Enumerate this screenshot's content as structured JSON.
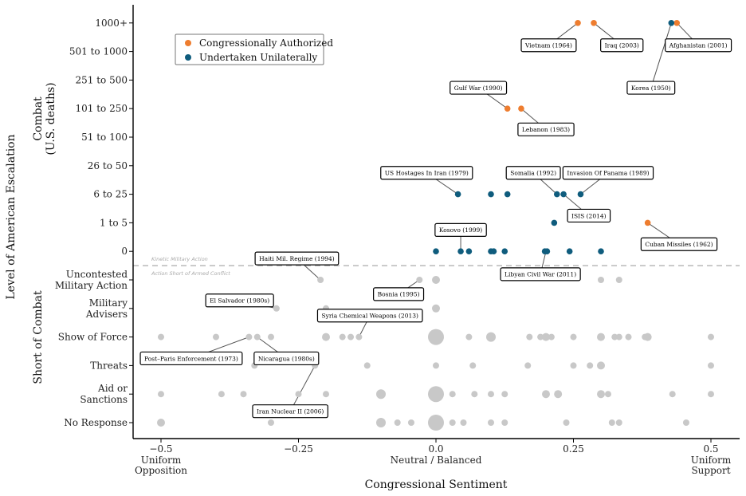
{
  "chart_data": {
    "type": "scatter",
    "xlabel": "Congressional Sentiment",
    "ylabel": "Level of American Escalation",
    "xlim": [
      -0.55,
      0.55
    ],
    "x_ticks": [
      {
        "value": -0.5,
        "label": "−0.5",
        "sub": [
          "Uniform",
          "Opposition"
        ]
      },
      {
        "value": -0.25,
        "label": "−0.25",
        "sub": []
      },
      {
        "value": 0,
        "label": "0.0",
        "sub": [
          "Neutral / Balanced"
        ]
      },
      {
        "value": 0.25,
        "label": "0.25",
        "sub": []
      },
      {
        "value": 0.5,
        "label": "0.5",
        "sub": [
          "Uniform",
          "Support"
        ]
      }
    ],
    "y_levels": [
      [
        "No Response"
      ],
      [
        "Aid or",
        "Sanctions"
      ],
      [
        "Threats"
      ],
      [
        "Show of Force"
      ],
      [
        "Military",
        "Advisers"
      ],
      [
        "Uncontested",
        "Military Action"
      ],
      [
        "0"
      ],
      [
        "1 to 5"
      ],
      [
        "6 to 25"
      ],
      [
        "26 to 50"
      ],
      [
        "51 to 100"
      ],
      [
        "101 to 250"
      ],
      [
        "251 to 500"
      ],
      [
        "501 to 1000"
      ],
      [
        "1000+"
      ]
    ],
    "group_labels": {
      "combat": [
        "Combat",
        "(U.S. deaths)"
      ],
      "short": "Short of Combat"
    },
    "divider_labels": {
      "above": "Kinetic Military Action",
      "below": "Action Short of Armed Conflict"
    },
    "legend": {
      "position": "top-left",
      "entries": [
        {
          "name": "Congressionally Authorized",
          "color": "#ee7d2f"
        },
        {
          "name": "Undertaken Unilaterally",
          "color": "#0f5c7d"
        }
      ]
    },
    "colors": {
      "authorized": "#ee7d2f",
      "unilateral": "#0f5c7d",
      "short": "#c8c8c8"
    },
    "series": [
      {
        "name": "Congressionally Authorized",
        "color": "#ee7d2f",
        "points": [
          {
            "x": 0.258,
            "y": 14
          },
          {
            "x": 0.287,
            "y": 14
          },
          {
            "x": 0.438,
            "y": 14
          },
          {
            "x": 0.13,
            "y": 11
          },
          {
            "x": 0.155,
            "y": 11
          },
          {
            "x": 0.385,
            "y": 7
          }
        ]
      },
      {
        "name": "Undertaken Unilaterally",
        "color": "#0f5c7d",
        "points": [
          {
            "x": 0.428,
            "y": 14
          },
          {
            "x": 0.04,
            "y": 8
          },
          {
            "x": 0.1,
            "y": 8
          },
          {
            "x": 0.13,
            "y": 8
          },
          {
            "x": 0.22,
            "y": 8
          },
          {
            "x": 0.232,
            "y": 8
          },
          {
            "x": 0.263,
            "y": 8
          },
          {
            "x": 0.215,
            "y": 7
          },
          {
            "x": 0.0,
            "y": 6
          },
          {
            "x": 0.045,
            "y": 6
          },
          {
            "x": 0.06,
            "y": 6
          },
          {
            "x": 0.1,
            "y": 6
          },
          {
            "x": 0.105,
            "y": 6
          },
          {
            "x": 0.125,
            "y": 6
          },
          {
            "x": 0.198,
            "y": 6
          },
          {
            "x": 0.202,
            "y": 6
          },
          {
            "x": 0.243,
            "y": 6
          },
          {
            "x": 0.3,
            "y": 6
          }
        ]
      },
      {
        "name": "",
        "color": "#c8c8c8",
        "points": [
          {
            "x": -0.21,
            "y": 5,
            "r": 4
          },
          {
            "x": -0.03,
            "y": 5,
            "r": 4
          },
          {
            "x": 0.0,
            "y": 5,
            "r": 5
          },
          {
            "x": 0.3,
            "y": 5,
            "r": 4
          },
          {
            "x": 0.333,
            "y": 5,
            "r": 4
          },
          {
            "x": -0.29,
            "y": 4,
            "r": 4
          },
          {
            "x": -0.2,
            "y": 4,
            "r": 4
          },
          {
            "x": 0.0,
            "y": 4,
            "r": 5
          },
          {
            "x": -0.5,
            "y": 3,
            "r": 4
          },
          {
            "x": -0.4,
            "y": 3,
            "r": 4
          },
          {
            "x": -0.34,
            "y": 3,
            "r": 4
          },
          {
            "x": -0.325,
            "y": 3,
            "r": 4
          },
          {
            "x": -0.3,
            "y": 3,
            "r": 4
          },
          {
            "x": -0.2,
            "y": 3,
            "r": 5
          },
          {
            "x": -0.17,
            "y": 3,
            "r": 4
          },
          {
            "x": -0.155,
            "y": 3,
            "r": 4
          },
          {
            "x": -0.14,
            "y": 3,
            "r": 4
          },
          {
            "x": 0.0,
            "y": 3,
            "r": 10
          },
          {
            "x": 0.06,
            "y": 3,
            "r": 4
          },
          {
            "x": 0.1,
            "y": 3,
            "r": 6
          },
          {
            "x": 0.17,
            "y": 3,
            "r": 4
          },
          {
            "x": 0.19,
            "y": 3,
            "r": 4
          },
          {
            "x": 0.2,
            "y": 3,
            "r": 5
          },
          {
            "x": 0.21,
            "y": 3,
            "r": 4
          },
          {
            "x": 0.25,
            "y": 3,
            "r": 4
          },
          {
            "x": 0.3,
            "y": 3,
            "r": 5
          },
          {
            "x": 0.325,
            "y": 3,
            "r": 4
          },
          {
            "x": 0.333,
            "y": 3,
            "r": 4
          },
          {
            "x": 0.35,
            "y": 3,
            "r": 4
          },
          {
            "x": 0.38,
            "y": 3,
            "r": 4
          },
          {
            "x": 0.385,
            "y": 3,
            "r": 5
          },
          {
            "x": 0.5,
            "y": 3,
            "r": 4
          },
          {
            "x": -0.33,
            "y": 2,
            "r": 4
          },
          {
            "x": -0.22,
            "y": 2,
            "r": 4
          },
          {
            "x": -0.125,
            "y": 2,
            "r": 4
          },
          {
            "x": 0.0,
            "y": 2,
            "r": 4
          },
          {
            "x": 0.067,
            "y": 2,
            "r": 4
          },
          {
            "x": 0.167,
            "y": 2,
            "r": 4
          },
          {
            "x": 0.25,
            "y": 2,
            "r": 4
          },
          {
            "x": 0.28,
            "y": 2,
            "r": 4
          },
          {
            "x": 0.3,
            "y": 2,
            "r": 5
          },
          {
            "x": 0.5,
            "y": 2,
            "r": 4
          },
          {
            "x": -0.5,
            "y": 1,
            "r": 4
          },
          {
            "x": -0.39,
            "y": 1,
            "r": 4
          },
          {
            "x": -0.35,
            "y": 1,
            "r": 4
          },
          {
            "x": -0.25,
            "y": 1,
            "r": 4
          },
          {
            "x": -0.2,
            "y": 1,
            "r": 4
          },
          {
            "x": -0.1,
            "y": 1,
            "r": 6
          },
          {
            "x": 0.0,
            "y": 1,
            "r": 10
          },
          {
            "x": 0.03,
            "y": 1,
            "r": 4
          },
          {
            "x": 0.07,
            "y": 1,
            "r": 4
          },
          {
            "x": 0.1,
            "y": 1,
            "r": 4
          },
          {
            "x": 0.125,
            "y": 1,
            "r": 4
          },
          {
            "x": 0.2,
            "y": 1,
            "r": 5
          },
          {
            "x": 0.222,
            "y": 1,
            "r": 5
          },
          {
            "x": 0.3,
            "y": 1,
            "r": 5
          },
          {
            "x": 0.313,
            "y": 1,
            "r": 4
          },
          {
            "x": 0.43,
            "y": 1,
            "r": 4
          },
          {
            "x": 0.5,
            "y": 1,
            "r": 4
          },
          {
            "x": -0.5,
            "y": 0,
            "r": 5
          },
          {
            "x": -0.3,
            "y": 0,
            "r": 4
          },
          {
            "x": -0.1,
            "y": 0,
            "r": 6
          },
          {
            "x": -0.07,
            "y": 0,
            "r": 4
          },
          {
            "x": -0.045,
            "y": 0,
            "r": 4
          },
          {
            "x": 0.0,
            "y": 0,
            "r": 10
          },
          {
            "x": 0.03,
            "y": 0,
            "r": 4
          },
          {
            "x": 0.05,
            "y": 0,
            "r": 4
          },
          {
            "x": 0.1,
            "y": 0,
            "r": 4
          },
          {
            "x": 0.125,
            "y": 0,
            "r": 4
          },
          {
            "x": 0.237,
            "y": 0,
            "r": 4
          },
          {
            "x": 0.32,
            "y": 0,
            "r": 4
          },
          {
            "x": 0.333,
            "y": 0,
            "r": 4
          },
          {
            "x": 0.455,
            "y": 0,
            "r": 4
          }
        ]
      }
    ],
    "annotations": [
      {
        "text": "Vietnam (1964)",
        "px": 0.258,
        "py": 14,
        "lx": 0.205,
        "ly": 13.22
      },
      {
        "text": "Iraq (2003)",
        "px": 0.287,
        "py": 14,
        "lx": 0.338,
        "ly": 13.22
      },
      {
        "text": "Afghanistan (2001)",
        "px": 0.438,
        "py": 14,
        "lx": 0.477,
        "ly": 13.22
      },
      {
        "text": "Korea (1950)",
        "px": 0.428,
        "py": 14,
        "lx": 0.391,
        "ly": 11.73
      },
      {
        "text": "Gulf War (1990)",
        "px": 0.13,
        "py": 11,
        "lx": 0.077,
        "ly": 11.73
      },
      {
        "text": "Lebanon (1983)",
        "px": 0.155,
        "py": 11,
        "lx": 0.2,
        "ly": 10.27
      },
      {
        "text": "US Hostages In Iran (1979)",
        "px": 0.04,
        "py": 8,
        "lx": -0.017,
        "ly": 8.75
      },
      {
        "text": "Somalia (1992)",
        "px": 0.22,
        "py": 8,
        "lx": 0.177,
        "ly": 8.75
      },
      {
        "text": "Invasion Of Panama (1989)",
        "px": 0.263,
        "py": 8,
        "lx": 0.313,
        "ly": 8.75
      },
      {
        "text": "ISIS (2014)",
        "px": 0.232,
        "py": 8,
        "lx": 0.278,
        "ly": 7.25
      },
      {
        "text": "Cuban Missiles (1962)",
        "px": 0.385,
        "py": 7,
        "lx": 0.442,
        "ly": 6.25
      },
      {
        "text": "Kosovo (1999)",
        "px": 0.045,
        "py": 6,
        "lx": 0.045,
        "ly": 6.75
      },
      {
        "text": "Libyan Civil War (2011)",
        "px": 0.2,
        "py": 6,
        "lx": 0.19,
        "ly": 5.2
      },
      {
        "text": "Haiti Mil. Regime (1994)",
        "px": -0.21,
        "py": 5,
        "lx": -0.253,
        "ly": 5.75
      },
      {
        "text": "Bosnia (1995)",
        "px": -0.03,
        "py": 5,
        "lx": -0.068,
        "ly": 4.5
      },
      {
        "text": "El Salvador (1980s)",
        "px": -0.29,
        "py": 4,
        "lx": -0.357,
        "ly": 4.28
      },
      {
        "text": "Syria Chemical Weapons (2013)",
        "px": -0.14,
        "py": 3,
        "lx": -0.12,
        "ly": 3.75
      },
      {
        "text": "Post–Paris Enforcement (1973)",
        "px": -0.34,
        "py": 3,
        "lx": -0.445,
        "ly": 2.25
      },
      {
        "text": "Nicaragua (1980s)",
        "px": -0.325,
        "py": 3,
        "lx": -0.272,
        "ly": 2.25
      },
      {
        "text": "Iran Nuclear II (2006)",
        "px": -0.22,
        "py": 2,
        "lx": -0.265,
        "ly": 0.4
      }
    ]
  }
}
